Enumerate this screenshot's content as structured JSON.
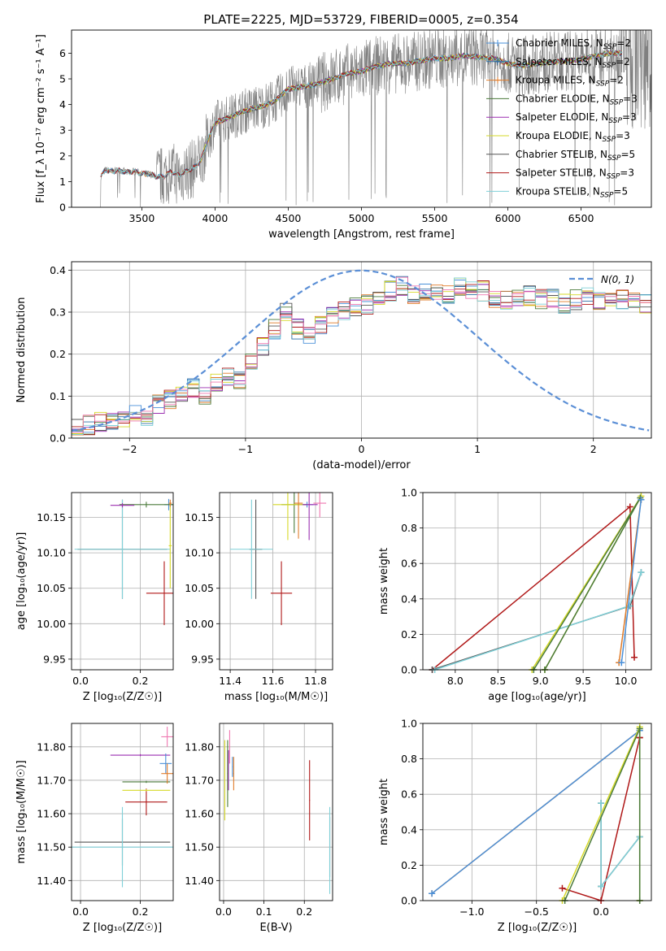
{
  "figure": {
    "title": "PLATE=2225, MJD=53729, FIBERID=0005, z=0.354"
  },
  "colors": {
    "chabrier_miles": "#4a90d9",
    "salpeter_miles": "#2d6fa5",
    "kroupa_miles": "#e07b28",
    "chabrier_elodie": "#4a7a3a",
    "salpeter_elodie": "#9b2fb0",
    "kroupa_elodie": "#d6d928",
    "chabrier_stelib": "#555555",
    "salpeter_stelib": "#b01818",
    "kroupa_stelib": "#7fd0d8",
    "gauss": "#5b8fd6",
    "spectrum": "#808080"
  },
  "legend_spectrum": [
    "Chabrier MILES, N$_{SSP}$=2",
    "Salpeter MILES, N$_{SSP}$=2",
    "Kroupa MILES, N$_{SSP}$=2",
    "Chabrier ELODIE, N$_{SSP}$=3",
    "Salpeter ELODIE, N$_{SSP}$=3",
    "Kroupa ELODIE, N$_{SSP}$=3",
    "Chabrier STELIB, N$_{SSP}$=5",
    "Salpeter STELIB, N$_{SSP}$=3",
    "Kroupa STELIB, N$_{SSP}$=5"
  ],
  "legend_hist": "N(0, 1)",
  "chart_data": [
    {
      "type": "line",
      "panel": "spectrum",
      "xlabel": "wavelength [Angstrom, rest frame]",
      "ylabel": "Flux [f_λ 10⁻¹⁷ erg cm⁻² s⁻¹ A⁻¹]",
      "xlim": [
        3020,
        6980
      ],
      "ylim": [
        0,
        6.9
      ],
      "xticks": [
        3500,
        4000,
        4500,
        5000,
        5500,
        6000,
        6500
      ],
      "yticks": [
        0,
        1,
        2,
        3,
        4,
        5,
        6
      ],
      "model_x": [
        3220,
        3250,
        3300,
        3350,
        3400,
        3450,
        3500,
        3550,
        3600,
        3650,
        3700,
        3750,
        3800,
        3850,
        3900,
        3950,
        4000,
        4100,
        4200,
        4300,
        4400,
        4500,
        4600,
        4700,
        4800,
        4900,
        5000,
        5100,
        5200,
        5300,
        5400,
        5500,
        5600,
        5700,
        5800,
        5900,
        6000,
        6100,
        6200,
        6300,
        6400,
        6500,
        6600,
        6700,
        6780
      ],
      "model_y": [
        1.2,
        1.45,
        1.4,
        1.45,
        1.35,
        1.4,
        1.3,
        1.3,
        1.2,
        1.2,
        1.4,
        1.25,
        1.4,
        1.5,
        1.8,
        2.6,
        3.3,
        3.5,
        3.75,
        3.9,
        4.1,
        4.6,
        4.7,
        4.8,
        5.0,
        5.2,
        5.3,
        5.5,
        5.6,
        5.6,
        5.7,
        5.8,
        5.8,
        5.9,
        5.85,
        5.8,
        5.6,
        5.5,
        5.6,
        5.65,
        5.7,
        5.75,
        5.9,
        6.0,
        6.0
      ]
    },
    {
      "type": "bar",
      "panel": "residual_hist",
      "xlabel": "(data-model)/error",
      "ylabel": "Normed distribution",
      "xlim": [
        -2.5,
        2.5
      ],
      "ylim": [
        0,
        0.42
      ],
      "xticks": [
        -2,
        -1,
        0,
        1,
        2
      ],
      "yticks": [
        0.0,
        0.1,
        0.2,
        0.3,
        0.4
      ],
      "bin_width": 0.1,
      "bin_start": -2.5,
      "values": [
        0.03,
        0.03,
        0.04,
        0.04,
        0.05,
        0.06,
        0.05,
        0.08,
        0.09,
        0.1,
        0.12,
        0.1,
        0.13,
        0.15,
        0.14,
        0.18,
        0.22,
        0.26,
        0.3,
        0.26,
        0.24,
        0.27,
        0.29,
        0.3,
        0.31,
        0.32,
        0.34,
        0.35,
        0.36,
        0.34,
        0.35,
        0.34,
        0.34,
        0.36,
        0.35,
        0.35,
        0.33,
        0.33,
        0.34,
        0.34,
        0.33,
        0.33,
        0.32,
        0.33,
        0.34,
        0.33,
        0.32,
        0.33,
        0.33,
        0.32,
        0.34,
        0.33,
        0.33,
        0.32,
        0.31,
        0.3,
        0.3,
        0.27,
        0.26,
        0.27,
        0.26,
        0.25,
        0.22,
        0.21,
        0.2,
        0.19,
        0.18,
        0.17,
        0.17,
        0.15,
        0.16,
        0.15,
        0.13,
        0.13,
        0.12,
        0.11,
        0.1,
        0.09,
        0.08,
        0.07,
        0.07,
        0.06,
        0.05,
        0.04,
        0.04,
        0.04,
        0.03,
        0.03,
        0.03,
        0.02,
        0.02,
        0.02,
        0.02,
        0.02,
        0.02,
        0.02,
        0.02,
        0.02,
        0.02,
        0.02
      ]
    },
    {
      "type": "scatter",
      "panel": "age_vs_Z",
      "xlabel": "Z [log₁₀(Z/Z☉)]",
      "ylabel": "age  [log₁₀(age/yr)]",
      "xlim": [
        -0.03,
        0.31
      ],
      "ylim": [
        9.935,
        10.185
      ],
      "xticks": [
        0.0,
        0.2
      ],
      "yticks": [
        9.95,
        10.0,
        10.05,
        10.1,
        10.15
      ],
      "points": [
        {
          "x": 0.14,
          "y": 10.105,
          "xerr": 0.15,
          "yerr": 0.07,
          "c": "chabrier_stelib"
        },
        {
          "x": 0.14,
          "y": 10.105,
          "xerr": 0.16,
          "yerr": 0.07,
          "c": "kroupa_stelib"
        },
        {
          "x": 0.28,
          "y": 10.043,
          "xerr": 0.06,
          "yerr": 0.045,
          "c": "salpeter_stelib"
        },
        {
          "x": 0.295,
          "y": 10.168,
          "xerr": 0.015,
          "yerr": 0.008,
          "c": "chabrier_miles"
        },
        {
          "x": 0.22,
          "y": 10.168,
          "xerr": 0.09,
          "yerr": 0.004,
          "c": "chabrier_elodie"
        },
        {
          "x": 0.14,
          "y": 10.167,
          "xerr": 0.04,
          "yerr": 0.003,
          "c": "salpeter_elodie"
        },
        {
          "x": 0.3,
          "y": 10.11,
          "xerr": 0.005,
          "yerr": 0.06,
          "c": "kroupa_elodie"
        },
        {
          "x": 0.3,
          "y": 10.17,
          "xerr": 0.005,
          "yerr": 0.005,
          "c": "kroupa_miles"
        }
      ]
    },
    {
      "type": "scatter",
      "panel": "age_vs_mass",
      "xlabel": "mass [log₁₀(M/M☉)]",
      "ylabel": "",
      "xlim": [
        11.35,
        11.88
      ],
      "ylim": [
        9.935,
        10.185
      ],
      "xticks": [
        11.4,
        11.6,
        11.8
      ],
      "yticks": [
        9.95,
        10.0,
        10.05,
        10.1,
        10.15
      ],
      "points": [
        {
          "x": 11.52,
          "y": 10.105,
          "xerr": 0.03,
          "yerr": 0.07,
          "c": "chabrier_stelib"
        },
        {
          "x": 11.5,
          "y": 10.105,
          "xerr": 0.1,
          "yerr": 0.07,
          "c": "kroupa_stelib"
        },
        {
          "x": 11.64,
          "y": 10.043,
          "xerr": 0.05,
          "yerr": 0.045,
          "c": "salpeter_stelib"
        },
        {
          "x": 11.76,
          "y": 10.168,
          "xerr": 0.03,
          "yerr": 0.004,
          "c": "chabrier_miles"
        },
        {
          "x": 11.7,
          "y": 10.168,
          "xerr": 0.06,
          "yerr": 0.04,
          "c": "chabrier_elodie"
        },
        {
          "x": 11.77,
          "y": 10.168,
          "xerr": 0.04,
          "yerr": 0.05,
          "c": "salpeter_elodie"
        },
        {
          "x": 11.67,
          "y": 10.168,
          "xerr": 0.07,
          "yerr": 0.05,
          "c": "kroupa_elodie"
        },
        {
          "x": 11.72,
          "y": 10.17,
          "xerr": 0.02,
          "yerr": 0.05,
          "c": "kroupa_miles"
        },
        {
          "x": 11.82,
          "y": 10.17,
          "xerr": 0.03,
          "yerr": 0.02,
          "c": "pink"
        }
      ]
    },
    {
      "type": "line",
      "panel": "weight_vs_age",
      "xlabel": "age  [log₁₀(age/yr)]",
      "ylabel": "mass weight",
      "xlim": [
        7.62,
        10.3
      ],
      "ylim": [
        0,
        1.0
      ],
      "xticks": [
        8.0,
        8.5,
        9.0,
        9.5,
        10.0
      ],
      "yticks": [
        0.0,
        0.2,
        0.4,
        0.6,
        0.8,
        1.0
      ],
      "series": [
        {
          "c": "salpeter_stelib",
          "x": [
            7.73,
            10.05,
            10.1
          ],
          "y": [
            0.0,
            0.92,
            0.07
          ]
        },
        {
          "c": "chabrier_stelib",
          "x": [
            7.73,
            10.05,
            10.18
          ],
          "y": [
            0.0,
            0.36,
            0.55
          ]
        },
        {
          "c": "kroupa_stelib",
          "x": [
            7.76,
            10.04,
            10.18
          ],
          "y": [
            0.0,
            0.36,
            0.55
          ]
        },
        {
          "c": "kroupa_elodie",
          "x": [
            8.9,
            10.18,
            9.05
          ],
          "y": [
            0.0,
            0.98,
            0.0
          ]
        },
        {
          "c": "chabrier_elodie",
          "x": [
            8.92,
            10.17,
            9.05
          ],
          "y": [
            0.0,
            0.97,
            0.0
          ]
        },
        {
          "c": "kroupa_miles",
          "x": [
            9.92,
            10.18
          ],
          "y": [
            0.04,
            0.96
          ]
        },
        {
          "c": "chabrier_miles",
          "x": [
            9.95,
            10.18
          ],
          "y": [
            0.04,
            0.96
          ]
        }
      ]
    },
    {
      "type": "scatter",
      "panel": "mass_vs_Z",
      "xlabel": "Z [log₁₀(Z/Z☉)]",
      "ylabel": "mass [log₁₀(M/M☉)]",
      "xlim": [
        -0.03,
        0.31
      ],
      "ylim": [
        11.34,
        11.87
      ],
      "xticks": [
        0.0,
        0.2
      ],
      "yticks": [
        11.4,
        11.5,
        11.6,
        11.7,
        11.8
      ],
      "points": [
        {
          "x": 0.14,
          "y": 11.515,
          "xerr": 0.16,
          "yerr": 0.07,
          "c": "chabrier_stelib"
        },
        {
          "x": 0.14,
          "y": 11.5,
          "xerr": 0.17,
          "yerr": 0.12,
          "c": "kroupa_stelib"
        },
        {
          "x": 0.22,
          "y": 11.635,
          "xerr": 0.07,
          "yerr": 0.04,
          "c": "salpeter_stelib"
        },
        {
          "x": 0.2,
          "y": 11.775,
          "xerr": 0.1,
          "yerr": 0.003,
          "c": "salpeter_elodie"
        },
        {
          "x": 0.22,
          "y": 11.695,
          "xerr": 0.08,
          "yerr": 0.003,
          "c": "chabrier_elodie"
        },
        {
          "x": 0.22,
          "y": 11.67,
          "xerr": 0.08,
          "yerr": 0.003,
          "c": "kroupa_elodie"
        },
        {
          "x": 0.285,
          "y": 11.75,
          "xerr": 0.02,
          "yerr": 0.03,
          "c": "chabrier_miles"
        },
        {
          "x": 0.29,
          "y": 11.72,
          "xerr": 0.02,
          "yerr": 0.03,
          "c": "kroupa_miles"
        },
        {
          "x": 0.29,
          "y": 11.83,
          "xerr": 0.02,
          "yerr": 0.03,
          "c": "pink"
        }
      ]
    },
    {
      "type": "scatter",
      "panel": "mass_vs_ebv",
      "xlabel": "E(B-V)",
      "ylabel": "",
      "xlim": [
        -0.01,
        0.27
      ],
      "ylim": [
        11.34,
        11.87
      ],
      "xticks": [
        0.0,
        0.1,
        0.2
      ],
      "yticks": [
        11.4,
        11.5,
        11.6,
        11.7,
        11.8
      ],
      "points": [
        {
          "x": 0.263,
          "y": 11.5,
          "xerr": 0.001,
          "yerr": 0.09,
          "c": "chabrier_stelib"
        },
        {
          "x": 0.263,
          "y": 11.49,
          "xerr": 0.001,
          "yerr": 0.13,
          "c": "kroupa_stelib"
        },
        {
          "x": 0.213,
          "y": 11.64,
          "xerr": 0.001,
          "yerr": 0.12,
          "c": "salpeter_stelib"
        },
        {
          "x": 0.003,
          "y": 11.7,
          "xerr": 0.001,
          "yerr": 0.12,
          "c": "kroupa_elodie"
        },
        {
          "x": 0.01,
          "y": 11.72,
          "xerr": 0.001,
          "yerr": 0.1,
          "c": "chabrier_elodie"
        },
        {
          "x": 0.012,
          "y": 11.73,
          "xerr": 0.001,
          "yerr": 0.06,
          "c": "salpeter_elodie"
        },
        {
          "x": 0.025,
          "y": 11.72,
          "xerr": 0.001,
          "yerr": 0.05,
          "c": "kroupa_miles"
        },
        {
          "x": 0.022,
          "y": 11.74,
          "xerr": 0.001,
          "yerr": 0.03,
          "c": "chabrier_miles"
        },
        {
          "x": 0.015,
          "y": 11.8,
          "xerr": 0.001,
          "yerr": 0.05,
          "c": "pink"
        }
      ]
    },
    {
      "type": "line",
      "panel": "weight_vs_Z",
      "xlabel": "Z [log₁₀(Z/Z☉)]",
      "ylabel": "mass weight",
      "xlim": [
        -1.38,
        0.39
      ],
      "ylim": [
        0,
        1.0
      ],
      "xticks": [
        -1.0,
        -0.5,
        0.0
      ],
      "yticks": [
        0.0,
        0.2,
        0.4,
        0.6,
        0.8,
        1.0
      ],
      "series": [
        {
          "c": "kroupa_miles",
          "x": [
            -1.31,
            0.3
          ],
          "y": [
            0.04,
            0.96
          ]
        },
        {
          "c": "chabrier_miles",
          "x": [
            -1.31,
            0.3
          ],
          "y": [
            0.04,
            0.96
          ]
        },
        {
          "c": "salpeter_stelib",
          "x": [
            -0.3,
            0.0,
            0.3,
            0.3
          ],
          "y": [
            0.07,
            0.0,
            0.92,
            0.92
          ]
        },
        {
          "c": "chabrier_stelib",
          "x": [
            0.0,
            0.0,
            0.3
          ],
          "y": [
            0.55,
            0.08,
            0.36
          ]
        },
        {
          "c": "kroupa_stelib",
          "x": [
            0.0,
            0.0,
            0.3
          ],
          "y": [
            0.55,
            0.08,
            0.36
          ]
        },
        {
          "c": "kroupa_elodie",
          "x": [
            -0.3,
            0.3,
            0.3
          ],
          "y": [
            0.0,
            0.98,
            0.0
          ]
        },
        {
          "c": "chabrier_elodie",
          "x": [
            -0.28,
            0.3,
            0.3
          ],
          "y": [
            0.0,
            0.97,
            0.0
          ]
        }
      ]
    }
  ]
}
